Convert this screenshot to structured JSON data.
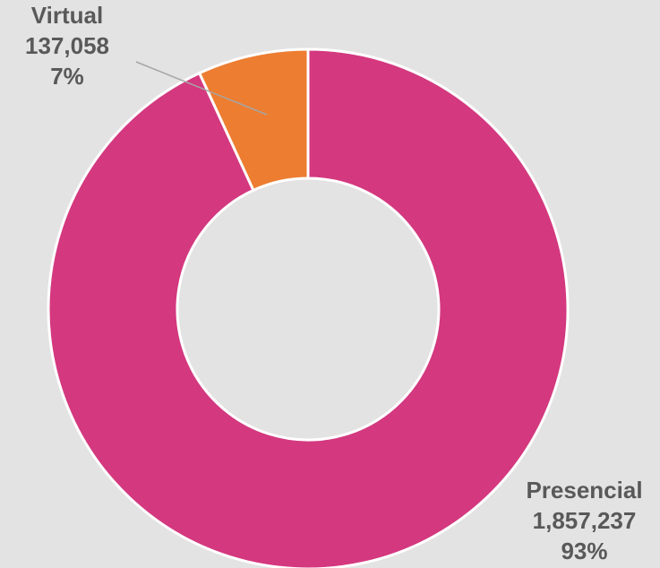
{
  "chart_data": {
    "type": "pie",
    "variant": "donut",
    "categories": [
      "Virtual",
      "Presencial"
    ],
    "values": [
      137058,
      1857237
    ],
    "value_labels": [
      "137,058",
      "1,857,237"
    ],
    "percent_labels": [
      "7%",
      "93%"
    ],
    "colors": [
      "#ed7d31",
      "#d4387f"
    ],
    "title": "",
    "legend": "none",
    "background": "#e3e3e3"
  }
}
